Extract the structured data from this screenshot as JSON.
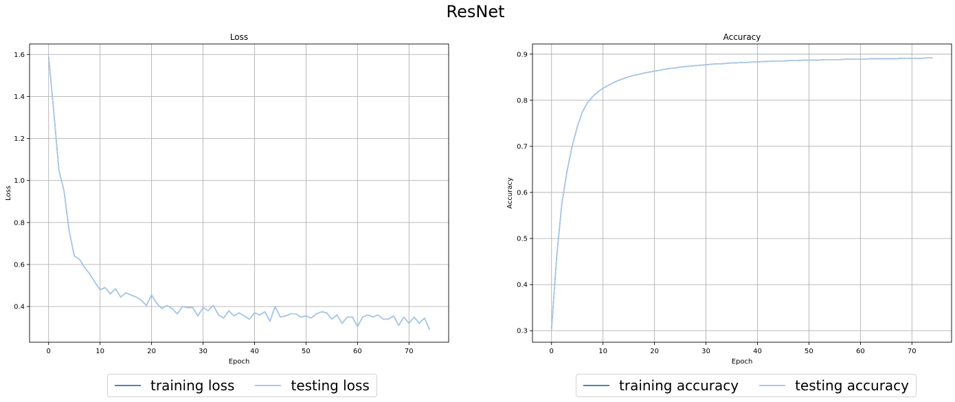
{
  "figure": {
    "title": "ResNet"
  },
  "colors": {
    "training": "#4a82b8",
    "testing": "#a9c8e8",
    "grid": "#b0b0b0",
    "axis": "#000000"
  },
  "chart_data": [
    {
      "type": "line",
      "title": "Loss",
      "xlabel": "Epoch",
      "ylabel": "Loss",
      "xlim": [
        -3.7,
        77.7
      ],
      "ylim": [
        0.23,
        1.65
      ],
      "xticks": [
        0,
        10,
        20,
        30,
        40,
        50,
        60,
        70
      ],
      "yticks": [
        0.4,
        0.6,
        0.8,
        1.0,
        1.2,
        1.4,
        1.6
      ],
      "ytick_labels": [
        "0.4",
        "0.6",
        "0.8",
        "1.0",
        "1.2",
        "1.4",
        "1.6"
      ],
      "grid": true,
      "legend_position": "below",
      "series": [
        {
          "name": "training loss",
          "color_key": "training",
          "values": [
            1.59,
            1.33,
            1.05,
            0.95,
            0.76,
            0.64,
            0.625,
            0.585,
            0.555,
            0.515,
            0.48,
            0.49,
            0.46,
            0.485,
            0.445,
            0.465,
            0.455,
            0.445,
            0.43,
            0.405,
            0.455,
            0.415,
            0.39,
            0.405,
            0.39,
            0.365,
            0.4,
            0.395,
            0.395,
            0.355,
            0.395,
            0.38,
            0.405,
            0.36,
            0.345,
            0.38,
            0.355,
            0.37,
            0.355,
            0.34,
            0.37,
            0.36,
            0.375,
            0.33,
            0.4,
            0.35,
            0.355,
            0.365,
            0.365,
            0.35,
            0.355,
            0.345,
            0.365,
            0.375,
            0.37,
            0.34,
            0.36,
            0.32,
            0.35,
            0.35,
            0.305,
            0.35,
            0.36,
            0.35,
            0.36,
            0.34,
            0.34,
            0.355,
            0.31,
            0.35,
            0.32,
            0.35,
            0.32,
            0.345,
            0.29
          ]
        },
        {
          "name": "testing loss",
          "color_key": "testing",
          "values": [
            1.59,
            1.33,
            1.05,
            0.95,
            0.76,
            0.64,
            0.625,
            0.585,
            0.555,
            0.515,
            0.48,
            0.49,
            0.46,
            0.485,
            0.445,
            0.465,
            0.455,
            0.445,
            0.43,
            0.405,
            0.455,
            0.415,
            0.39,
            0.405,
            0.39,
            0.365,
            0.4,
            0.395,
            0.395,
            0.355,
            0.395,
            0.38,
            0.405,
            0.36,
            0.345,
            0.38,
            0.355,
            0.37,
            0.355,
            0.34,
            0.37,
            0.36,
            0.375,
            0.33,
            0.4,
            0.35,
            0.355,
            0.365,
            0.365,
            0.35,
            0.355,
            0.345,
            0.365,
            0.375,
            0.37,
            0.34,
            0.36,
            0.32,
            0.35,
            0.35,
            0.305,
            0.35,
            0.36,
            0.35,
            0.36,
            0.34,
            0.34,
            0.355,
            0.31,
            0.35,
            0.32,
            0.35,
            0.32,
            0.345,
            0.29
          ]
        }
      ]
    },
    {
      "type": "line",
      "title": "Accuracy",
      "xlabel": "Epoch",
      "ylabel": "Accuracy",
      "xlim": [
        -3.7,
        77.7
      ],
      "ylim": [
        0.275,
        0.922
      ],
      "xticks": [
        0,
        10,
        20,
        30,
        40,
        50,
        60,
        70
      ],
      "yticks": [
        0.3,
        0.4,
        0.5,
        0.6,
        0.7,
        0.8,
        0.9
      ],
      "ytick_labels": [
        "0.3",
        "0.4",
        "0.5",
        "0.6",
        "0.7",
        "0.8",
        "0.9"
      ],
      "grid": true,
      "legend_position": "below",
      "series": [
        {
          "name": "training accuracy",
          "color_key": "training",
          "values": [
            0.303,
            0.46,
            0.575,
            0.645,
            0.7,
            0.742,
            0.775,
            0.795,
            0.808,
            0.818,
            0.826,
            0.832,
            0.838,
            0.843,
            0.847,
            0.851,
            0.854,
            0.856,
            0.859,
            0.861,
            0.863,
            0.865,
            0.867,
            0.869,
            0.87,
            0.872,
            0.873,
            0.874,
            0.875,
            0.876,
            0.877,
            0.878,
            0.879,
            0.879,
            0.88,
            0.881,
            0.881,
            0.882,
            0.882,
            0.883,
            0.883,
            0.884,
            0.884,
            0.885,
            0.885,
            0.885,
            0.886,
            0.886,
            0.886,
            0.887,
            0.887,
            0.887,
            0.887,
            0.888,
            0.888,
            0.888,
            0.888,
            0.889,
            0.889,
            0.889,
            0.889,
            0.889,
            0.89,
            0.89,
            0.89,
            0.89,
            0.89,
            0.89,
            0.891,
            0.891,
            0.891,
            0.891,
            0.891,
            0.892,
            0.892
          ]
        },
        {
          "name": "testing accuracy",
          "color_key": "testing",
          "values": [
            0.303,
            0.46,
            0.575,
            0.645,
            0.7,
            0.742,
            0.775,
            0.795,
            0.808,
            0.818,
            0.826,
            0.832,
            0.838,
            0.843,
            0.847,
            0.851,
            0.854,
            0.856,
            0.859,
            0.861,
            0.863,
            0.865,
            0.867,
            0.869,
            0.87,
            0.872,
            0.873,
            0.874,
            0.875,
            0.876,
            0.877,
            0.878,
            0.879,
            0.879,
            0.88,
            0.881,
            0.881,
            0.882,
            0.882,
            0.883,
            0.883,
            0.884,
            0.884,
            0.885,
            0.885,
            0.885,
            0.886,
            0.886,
            0.886,
            0.887,
            0.887,
            0.887,
            0.887,
            0.888,
            0.888,
            0.888,
            0.888,
            0.889,
            0.889,
            0.889,
            0.889,
            0.889,
            0.89,
            0.89,
            0.89,
            0.89,
            0.89,
            0.89,
            0.891,
            0.891,
            0.891,
            0.891,
            0.891,
            0.892,
            0.892
          ]
        }
      ]
    }
  ]
}
